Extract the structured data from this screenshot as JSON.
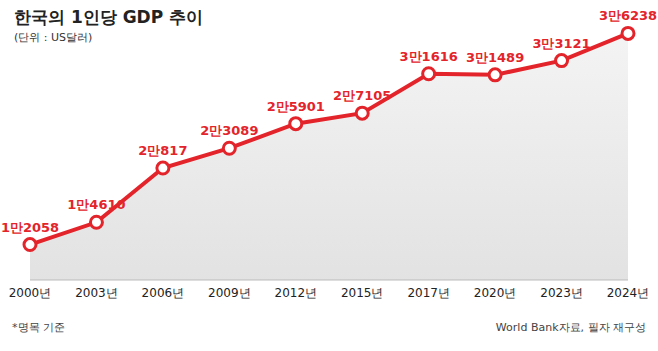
{
  "chart_data": {
    "type": "line",
    "title": "한국의 1인당 GDP 추이",
    "subtitle": "(단위 : US달러)",
    "categories": [
      "2000년",
      "2003년",
      "2006년",
      "2009년",
      "2012년",
      "2015년",
      "2017년",
      "2020년",
      "2023년",
      "2024년"
    ],
    "values": [
      12058,
      14610,
      20817,
      23089,
      25901,
      27105,
      31616,
      31489,
      33121,
      36238
    ],
    "value_labels": [
      "1만2058",
      "1만4610",
      "2만817",
      "2만3089",
      "2만5901",
      "2만7105",
      "3만1616",
      "3만1489",
      "3만3121",
      "3만6238"
    ],
    "color": "#e3242b",
    "ylim": [
      8000,
      38000
    ],
    "tick_labels": "x",
    "data_labels": true,
    "grid": false,
    "marker": "circle",
    "note": "*명목 기준",
    "source": "World Bank자료, 필자 재구성"
  }
}
